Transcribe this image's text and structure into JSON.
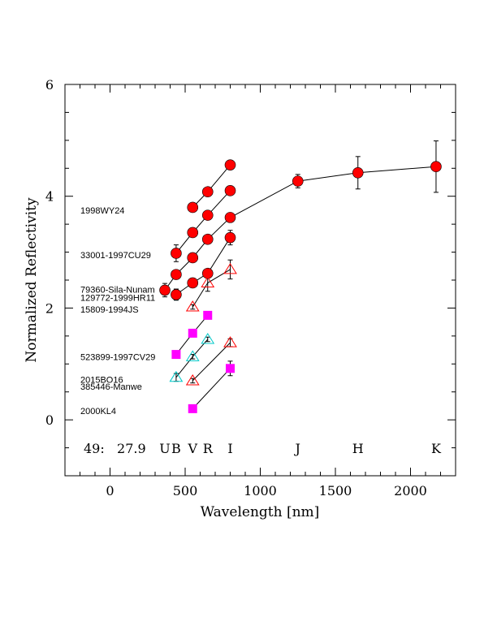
{
  "chart_data": {
    "type": "scatter",
    "xlabel": "Wavelength [nm]",
    "ylabel": "Normalized Reflectivity",
    "xlim": [
      -300,
      2300
    ],
    "ylim": [
      -1,
      6
    ],
    "x_ticks": [
      0,
      500,
      1000,
      1500,
      2000
    ],
    "y_ticks": [
      0,
      2,
      4,
      6
    ],
    "grid": false,
    "footer_label": "49:   27.9",
    "band_labels": [
      {
        "label": "U",
        "x": 365
      },
      {
        "label": "B",
        "x": 440
      },
      {
        "label": "V",
        "x": 550
      },
      {
        "label": "R",
        "x": 650
      },
      {
        "label": "I",
        "x": 800
      },
      {
        "label": "J",
        "x": 1250
      },
      {
        "label": "H",
        "x": 1650
      },
      {
        "label": "K",
        "x": 2170
      }
    ],
    "series": [
      {
        "name": "1998WY24",
        "label_y": 3.75,
        "marker": "circle",
        "color": "#ff0000",
        "points": [
          {
            "x": 550,
            "y": 3.8,
            "err": 0.04
          },
          {
            "x": 650,
            "y": 4.08,
            "err": 0.07
          },
          {
            "x": 800,
            "y": 4.56,
            "err": 0.07
          }
        ]
      },
      {
        "name": "33001-1997CU29",
        "label_y": 2.95,
        "marker": "circle",
        "color": "#ff0000",
        "points": [
          {
            "x": 440,
            "y": 2.98,
            "err": 0.15
          },
          {
            "x": 550,
            "y": 3.35,
            "err": 0.04
          },
          {
            "x": 650,
            "y": 3.66,
            "err": 0.07
          },
          {
            "x": 800,
            "y": 4.1,
            "err": 0.08
          }
        ]
      },
      {
        "name": "79360-Sila-Nunam",
        "label_y": 2.33,
        "marker": "circle",
        "color": "#ff0000",
        "points": [
          {
            "x": 365,
            "y": 2.32,
            "err": 0.12
          },
          {
            "x": 440,
            "y": 2.6,
            "err": 0.06
          },
          {
            "x": 550,
            "y": 2.9,
            "err": 0.04
          },
          {
            "x": 650,
            "y": 3.23,
            "err": 0.07
          },
          {
            "x": 800,
            "y": 3.62,
            "err": 0.07
          },
          {
            "x": 1250,
            "y": 4.27,
            "err": 0.12
          },
          {
            "x": 1650,
            "y": 4.42,
            "err": 0.29
          },
          {
            "x": 2170,
            "y": 4.53,
            "err": 0.46
          }
        ]
      },
      {
        "name": "129772-1999HR11",
        "label_y": 2.19,
        "marker": "circle",
        "color": "#ff0000",
        "points": [
          {
            "x": 440,
            "y": 2.24,
            "err": 0.1
          },
          {
            "x": 550,
            "y": 2.45,
            "err": 0.04
          },
          {
            "x": 650,
            "y": 2.62,
            "err": 0.07
          },
          {
            "x": 800,
            "y": 3.26,
            "err": 0.13
          }
        ]
      },
      {
        "name": "15809-1994JS",
        "label_y": 1.98,
        "marker": "triangle",
        "color": "#ff0000",
        "points": [
          {
            "x": 550,
            "y": 2.02,
            "err": 0.04
          },
          {
            "x": 650,
            "y": 2.45,
            "err": 0.15
          },
          {
            "x": 800,
            "y": 2.69,
            "err": 0.17
          }
        ]
      },
      {
        "name": "523899-1997CV29",
        "label_y": 1.13,
        "marker": "square",
        "color": "#ff00ff",
        "points": [
          {
            "x": 440,
            "y": 1.17,
            "err": 0.04
          },
          {
            "x": 550,
            "y": 1.55,
            "err": 0.04
          },
          {
            "x": 650,
            "y": 1.87,
            "err": 0.04
          }
        ]
      },
      {
        "name": "2015BO16",
        "label_y": 0.72,
        "marker": "triangle",
        "color": "#00c8c8",
        "points": [
          {
            "x": 440,
            "y": 0.76,
            "err": 0.07
          },
          {
            "x": 550,
            "y": 1.13,
            "err": 0.04
          },
          {
            "x": 650,
            "y": 1.44,
            "err": 0.04
          }
        ]
      },
      {
        "name": "385446-Manwe",
        "label_y": 0.6,
        "marker": "triangle",
        "color": "#ff0000",
        "points": [
          {
            "x": 550,
            "y": 0.7,
            "err": 0.04
          },
          {
            "x": 800,
            "y": 1.38,
            "err": 0.07
          }
        ]
      },
      {
        "name": "2000KL4",
        "label_y": 0.16,
        "marker": "square",
        "color": "#ff00ff",
        "points": [
          {
            "x": 550,
            "y": 0.2,
            "err": 0.04
          },
          {
            "x": 800,
            "y": 0.92,
            "err": 0.13
          }
        ]
      }
    ]
  }
}
